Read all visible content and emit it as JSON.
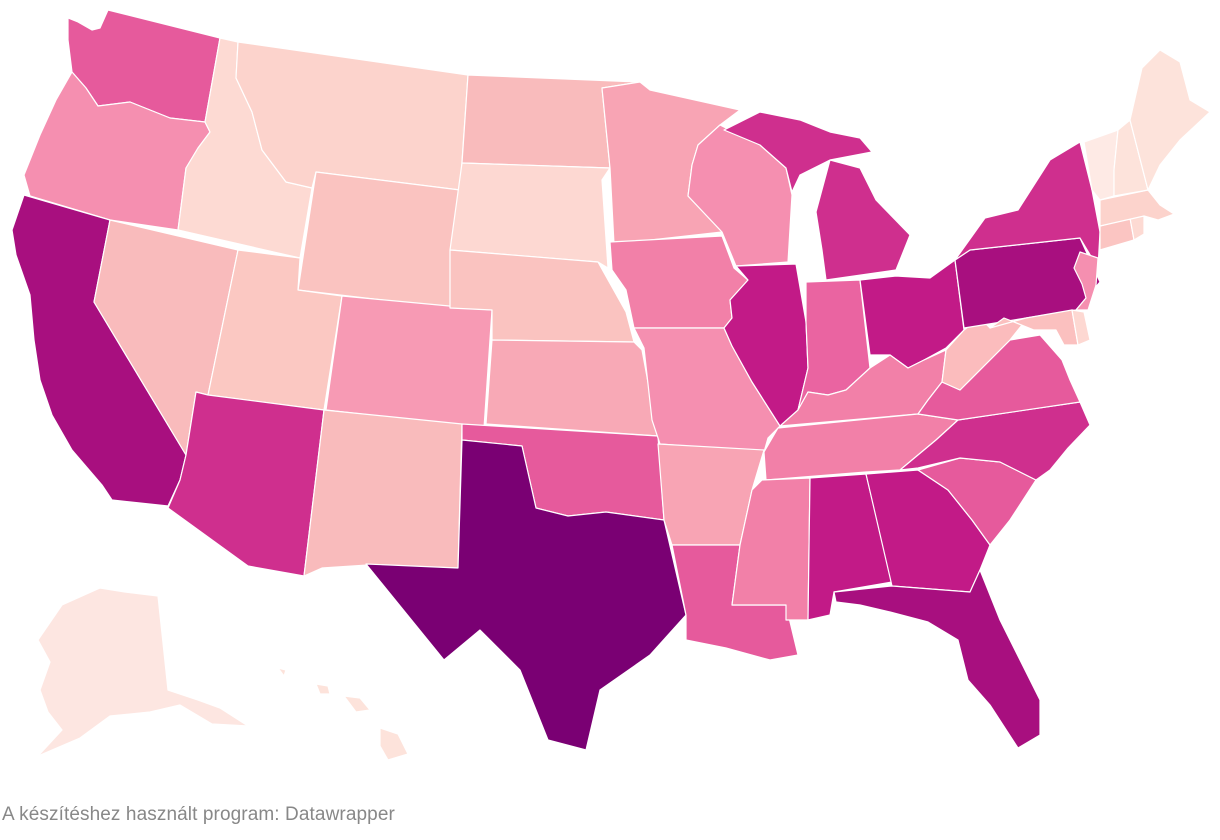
{
  "footer": {
    "credit": "A készítéshez használt program: Datawrapper"
  },
  "map": {
    "type": "choropleth",
    "region": "United States",
    "palette": [
      "#fde6e1",
      "#fcd3cc",
      "#f9bbbc",
      "#f7a0b3",
      "#f280a8",
      "#e65a9c",
      "#cf2f8e",
      "#a80f7f",
      "#7a0073"
    ],
    "states": [
      {
        "id": "AK",
        "name": "Alaska",
        "color": "#fde6e1"
      },
      {
        "id": "HI",
        "name": "Hawaii",
        "color": "#fde3db"
      },
      {
        "id": "WA",
        "name": "Washington",
        "color": "#e65a9c"
      },
      {
        "id": "OR",
        "name": "Oregon",
        "color": "#f58fb0"
      },
      {
        "id": "CA",
        "name": "California",
        "color": "#a80f7f"
      },
      {
        "id": "ID",
        "name": "Idaho",
        "color": "#fddad3"
      },
      {
        "id": "NV",
        "name": "Nevada",
        "color": "#f9bbbc"
      },
      {
        "id": "MT",
        "name": "Montana",
        "color": "#fcd3cc"
      },
      {
        "id": "WY",
        "name": "Wyoming",
        "color": "#fac3c0"
      },
      {
        "id": "UT",
        "name": "Utah",
        "color": "#fbc8c2"
      },
      {
        "id": "AZ",
        "name": "Arizona",
        "color": "#cf2f8e"
      },
      {
        "id": "CO",
        "name": "Colorado",
        "color": "#f79ab4"
      },
      {
        "id": "NM",
        "name": "New Mexico",
        "color": "#f9bbbc"
      },
      {
        "id": "ND",
        "name": "North Dakota",
        "color": "#f9bbbc"
      },
      {
        "id": "SD",
        "name": "South Dakota",
        "color": "#fdd8d2"
      },
      {
        "id": "NE",
        "name": "Nebraska",
        "color": "#fac3c0"
      },
      {
        "id": "KS",
        "name": "Kansas",
        "color": "#f8a9b6"
      },
      {
        "id": "OK",
        "name": "Oklahoma",
        "color": "#e65a9c"
      },
      {
        "id": "TX",
        "name": "Texas",
        "color": "#7a0073"
      },
      {
        "id": "MN",
        "name": "Minnesota",
        "color": "#f8a4b4"
      },
      {
        "id": "IA",
        "name": "Iowa",
        "color": "#f280a8"
      },
      {
        "id": "MO",
        "name": "Missouri",
        "color": "#f58fb0"
      },
      {
        "id": "AR",
        "name": "Arkansas",
        "color": "#f8a4b4"
      },
      {
        "id": "LA",
        "name": "Louisiana",
        "color": "#e65a9c"
      },
      {
        "id": "WI",
        "name": "Wisconsin",
        "color": "#f58fb0"
      },
      {
        "id": "IL",
        "name": "Illinois",
        "color": "#c21a87"
      },
      {
        "id": "MI",
        "name": "Michigan",
        "color": "#cf2f8e"
      },
      {
        "id": "IN",
        "name": "Indiana",
        "color": "#ea64a1"
      },
      {
        "id": "OH",
        "name": "Ohio",
        "color": "#c21a87"
      },
      {
        "id": "KY",
        "name": "Kentucky",
        "color": "#f280a8"
      },
      {
        "id": "TN",
        "name": "Tennessee",
        "color": "#f280a8"
      },
      {
        "id": "MS",
        "name": "Mississippi",
        "color": "#f280a8"
      },
      {
        "id": "AL",
        "name": "Alabama",
        "color": "#c21a87"
      },
      {
        "id": "GA",
        "name": "Georgia",
        "color": "#c21a87"
      },
      {
        "id": "FL",
        "name": "Florida",
        "color": "#a80f7f"
      },
      {
        "id": "SC",
        "name": "South Carolina",
        "color": "#e65a9c"
      },
      {
        "id": "NC",
        "name": "North Carolina",
        "color": "#cf2f8e"
      },
      {
        "id": "VA",
        "name": "Virginia",
        "color": "#e65a9c"
      },
      {
        "id": "WV",
        "name": "West Virginia",
        "color": "#fbbcbd"
      },
      {
        "id": "PA",
        "name": "Pennsylvania",
        "color": "#a80f7f"
      },
      {
        "id": "NY",
        "name": "New York",
        "color": "#cf2f8e"
      },
      {
        "id": "NJ",
        "name": "New Jersey",
        "color": "#f58fb0"
      },
      {
        "id": "MD",
        "name": "Maryland",
        "color": "#fbc0bf"
      },
      {
        "id": "DE",
        "name": "Delaware",
        "color": "#fdd8d2"
      },
      {
        "id": "CT",
        "name": "Connecticut",
        "color": "#fbc5c2"
      },
      {
        "id": "RI",
        "name": "Rhode Island",
        "color": "#fddad3"
      },
      {
        "id": "MA",
        "name": "Massachusetts",
        "color": "#fcd3cc"
      },
      {
        "id": "VT",
        "name": "Vermont",
        "color": "#feeae5"
      },
      {
        "id": "NH",
        "name": "New Hampshire",
        "color": "#fde3db"
      },
      {
        "id": "ME",
        "name": "Maine",
        "color": "#fde3db"
      }
    ]
  }
}
